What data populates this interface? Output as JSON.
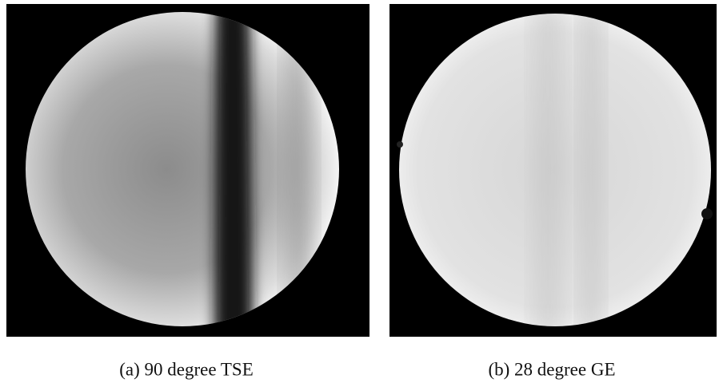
{
  "figures": [
    {
      "caption": "(a) 90 degree TSE"
    },
    {
      "caption": "(b) 28 degree GE"
    }
  ]
}
